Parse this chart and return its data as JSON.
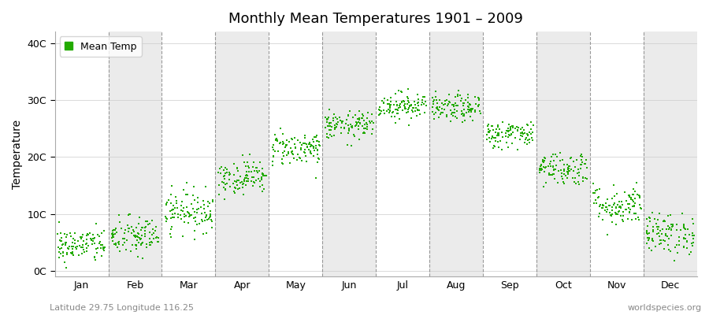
{
  "title": "Monthly Mean Temperatures 1901 – 2009",
  "ylabel": "Temperature",
  "subtitle_left": "Latitude 29.75 Longitude 116.25",
  "subtitle_right": "worldspecies.org",
  "legend_label": "Mean Temp",
  "marker_color": "#22aa00",
  "background_color": "#ffffff",
  "plot_bg_color": "#ffffff",
  "band_color": "#ebebeb",
  "ytick_labels": [
    "0C",
    "10C",
    "20C",
    "30C",
    "40C"
  ],
  "ytick_values": [
    0,
    10,
    20,
    30,
    40
  ],
  "ylim": [
    -1,
    42
  ],
  "xlim": [
    0,
    12
  ],
  "months": [
    "Jan",
    "Feb",
    "Mar",
    "Apr",
    "May",
    "Jun",
    "Jul",
    "Aug",
    "Sep",
    "Oct",
    "Nov",
    "Dec"
  ],
  "mean_temps": [
    4.5,
    6.0,
    10.5,
    16.5,
    21.5,
    25.5,
    29.0,
    28.5,
    24.0,
    18.0,
    11.5,
    6.5
  ],
  "spread": [
    1.5,
    1.8,
    1.8,
    1.5,
    1.5,
    1.2,
    1.2,
    1.2,
    1.2,
    1.5,
    1.8,
    1.8
  ],
  "n_years": 109,
  "random_seed": 42,
  "dpi": 100,
  "figsize": [
    9.0,
    4.0
  ]
}
